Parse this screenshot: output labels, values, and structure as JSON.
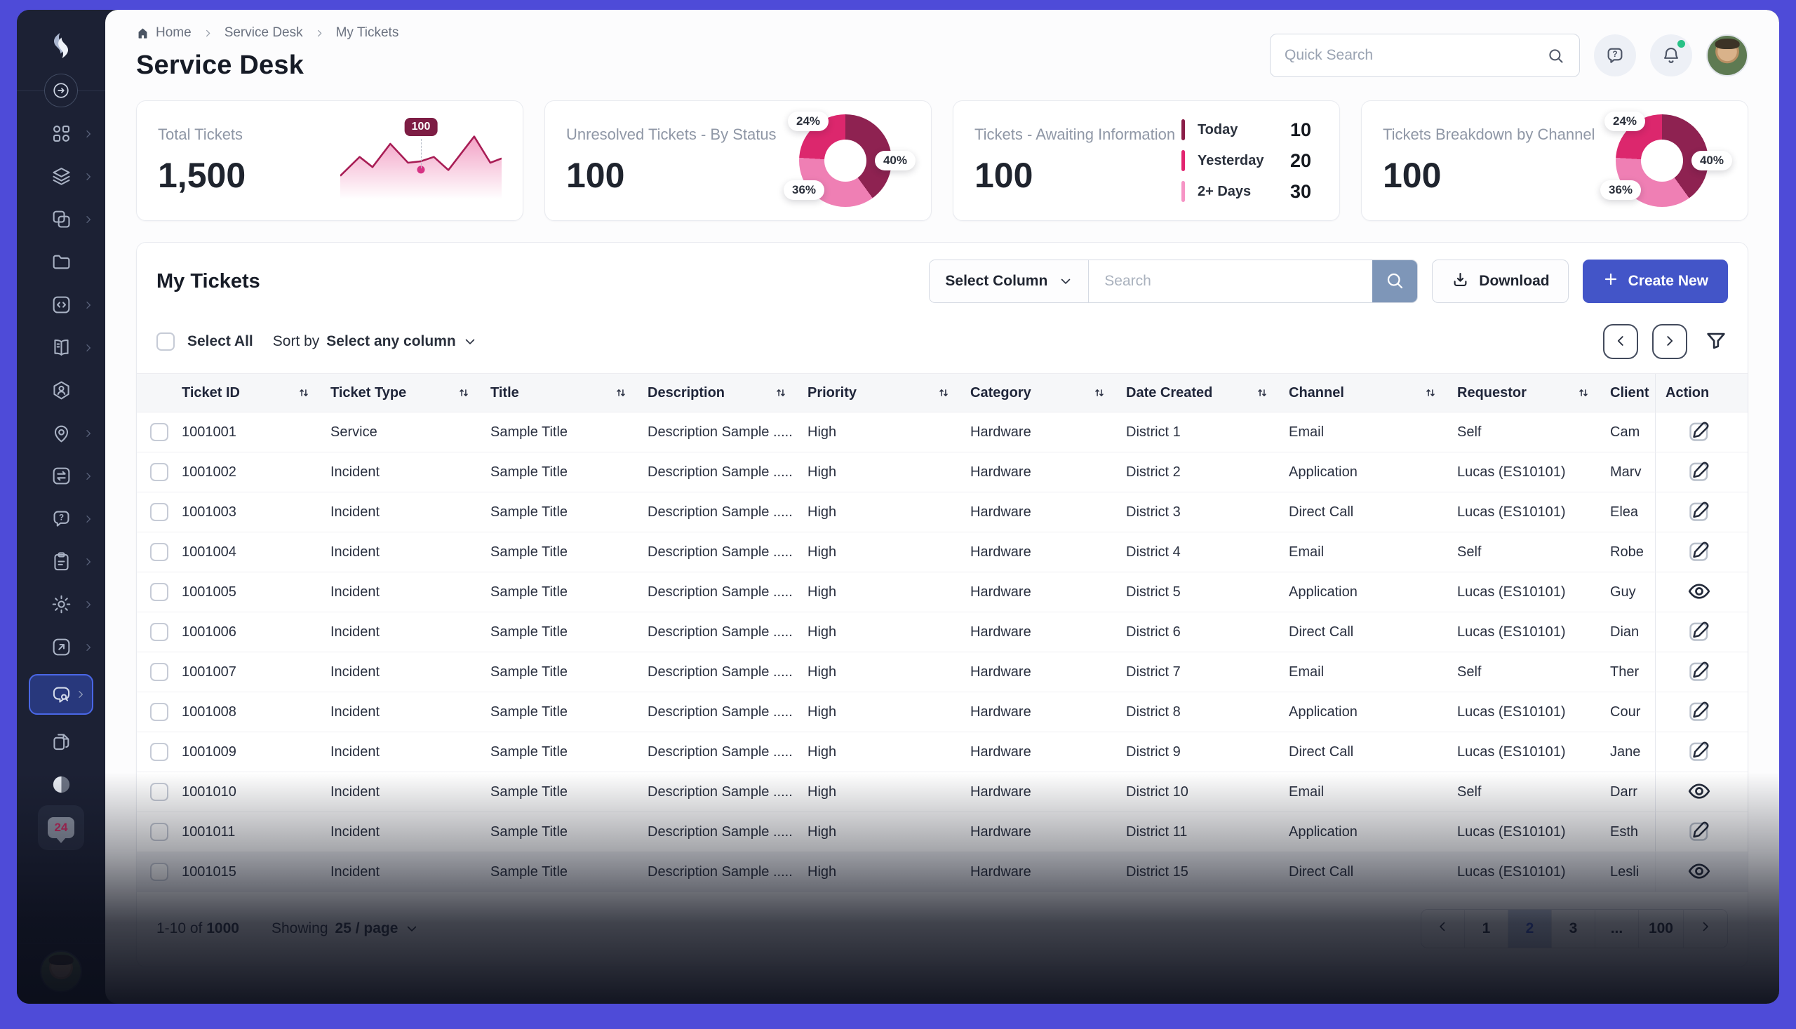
{
  "breadcrumb": {
    "items": [
      "Home",
      "Service Desk",
      "My Tickets"
    ]
  },
  "page_title": "Service Desk",
  "header": {
    "quick_search_placeholder": "Quick Search"
  },
  "sidebar": {
    "items": [
      {
        "icon": "apps-grid",
        "chevron": true
      },
      {
        "icon": "layers",
        "chevron": true
      },
      {
        "icon": "copy",
        "chevron": true
      },
      {
        "icon": "folder",
        "chevron": false
      },
      {
        "icon": "code-square",
        "chevron": true
      },
      {
        "icon": "book",
        "chevron": true
      },
      {
        "icon": "hexagon-user",
        "chevron": false
      },
      {
        "icon": "location-pin",
        "chevron": true
      },
      {
        "icon": "swap",
        "chevron": true
      },
      {
        "icon": "question-bubble",
        "chevron": true
      },
      {
        "icon": "clipboard",
        "chevron": true
      },
      {
        "icon": "gear",
        "chevron": true
      },
      {
        "icon": "external-link",
        "chevron": true
      },
      {
        "icon": "chat-search",
        "chevron": true,
        "active": true
      },
      {
        "icon": "pages",
        "chevron": false
      },
      {
        "icon": "theme-toggle",
        "chevron": false
      },
      {
        "icon": "badge",
        "chevron": false,
        "badge": "24"
      }
    ]
  },
  "cards": [
    {
      "label": "Total Tickets",
      "value": "1,500",
      "chart": {
        "type": "area-sparkline",
        "highlight_value": "100",
        "dot_index": 5,
        "line_color": "#a81d55",
        "fill_top": "rgba(232,84,150,0.55)",
        "fill_bottom": "rgba(232,84,150,0)",
        "points": [
          [
            0,
            68
          ],
          [
            12,
            42
          ],
          [
            20,
            56
          ],
          [
            31,
            24
          ],
          [
            42,
            50
          ],
          [
            50,
            48
          ],
          [
            58,
            42
          ],
          [
            67,
            60
          ],
          [
            83,
            14
          ],
          [
            93,
            50
          ],
          [
            100,
            44
          ]
        ]
      }
    },
    {
      "label": "Unresolved Tickets - By Status",
      "value": "100",
      "chart": {
        "type": "donut",
        "segments": [
          {
            "label": "40%",
            "value": 40,
            "color": "#8e2251"
          },
          {
            "label": "36%",
            "value": 36,
            "color": "#ef7fb4"
          },
          {
            "label": "24%",
            "value": 24,
            "color": "#dc276d"
          }
        ]
      }
    },
    {
      "label": "Tickets - Awaiting Information",
      "value": "100",
      "legend": [
        {
          "label": "Today",
          "value": "10",
          "color": "#8a1d47"
        },
        {
          "label": "Yesterday",
          "value": "20",
          "color": "#e2246f"
        },
        {
          "label": "2+ Days",
          "value": "30",
          "color": "#f694c5"
        }
      ]
    },
    {
      "label": "Tickets Breakdown by Channel",
      "value": "100",
      "chart": {
        "type": "donut",
        "segments": [
          {
            "label": "40%",
            "value": 40,
            "color": "#8e2251"
          },
          {
            "label": "36%",
            "value": 36,
            "color": "#ef7fb4"
          },
          {
            "label": "24%",
            "value": 24,
            "color": "#dc276d"
          }
        ]
      }
    }
  ],
  "panel": {
    "title": "My Tickets",
    "select_column_label": "Select Column",
    "search_placeholder": "Search",
    "download_label": "Download",
    "create_new_label": "Create New",
    "select_all_label": "Select All",
    "sort_by_prefix": "Sort by",
    "sort_by_value": "Select any column"
  },
  "table": {
    "columns": [
      {
        "key": "checkbox",
        "label": "",
        "sortable": false
      },
      {
        "key": "ticket-id",
        "label": "Ticket ID",
        "sortable": true
      },
      {
        "key": "ticket-type",
        "label": "Ticket Type",
        "sortable": true
      },
      {
        "key": "title",
        "label": "Title",
        "sortable": true
      },
      {
        "key": "description",
        "label": "Description",
        "sortable": true
      },
      {
        "key": "priority",
        "label": "Priority",
        "sortable": true
      },
      {
        "key": "category",
        "label": "Category",
        "sortable": true
      },
      {
        "key": "date-created",
        "label": "Date Created",
        "sortable": true
      },
      {
        "key": "channel",
        "label": "Channel",
        "sortable": true
      },
      {
        "key": "requestor",
        "label": "Requestor",
        "sortable": true
      },
      {
        "key": "client",
        "label": "Client",
        "sortable": false
      },
      {
        "key": "action",
        "label": "Action",
        "sortable": false
      }
    ],
    "rows": [
      {
        "id": "1001001",
        "type": "Service",
        "title": "Sample Title",
        "description": "Description Sample .....",
        "priority": "High",
        "category": "Hardware",
        "date_created": "District 1",
        "channel": "Email",
        "requestor": "Self",
        "client": "Cam",
        "action": "edit"
      },
      {
        "id": "1001002",
        "type": "Incident",
        "title": "Sample Title",
        "description": "Description Sample .....",
        "priority": "High",
        "category": "Hardware",
        "date_created": "District 2",
        "channel": "Application",
        "requestor": "Lucas (ES10101)",
        "client": "Marv",
        "action": "edit"
      },
      {
        "id": "1001003",
        "type": "Incident",
        "title": "Sample Title",
        "description": "Description Sample .....",
        "priority": "High",
        "category": "Hardware",
        "date_created": "District 3",
        "channel": "Direct Call",
        "requestor": "Lucas (ES10101)",
        "client": "Elea",
        "action": "edit"
      },
      {
        "id": "1001004",
        "type": "Incident",
        "title": "Sample Title",
        "description": "Description Sample .....",
        "priority": "High",
        "category": "Hardware",
        "date_created": "District 4",
        "channel": "Email",
        "requestor": "Self",
        "client": "Robe",
        "action": "edit"
      },
      {
        "id": "1001005",
        "type": "Incident",
        "title": "Sample Title",
        "description": "Description Sample .....",
        "priority": "High",
        "category": "Hardware",
        "date_created": "District 5",
        "channel": "Application",
        "requestor": "Lucas (ES10101)",
        "client": "Guy",
        "action": "view"
      },
      {
        "id": "1001006",
        "type": "Incident",
        "title": "Sample Title",
        "description": "Description Sample .....",
        "priority": "High",
        "category": "Hardware",
        "date_created": "District 6",
        "channel": "Direct Call",
        "requestor": "Lucas (ES10101)",
        "client": "Dian",
        "action": "edit"
      },
      {
        "id": "1001007",
        "type": "Incident",
        "title": "Sample Title",
        "description": "Description Sample .....",
        "priority": "High",
        "category": "Hardware",
        "date_created": "District 7",
        "channel": "Email",
        "requestor": "Self",
        "client": "Ther",
        "action": "edit"
      },
      {
        "id": "1001008",
        "type": "Incident",
        "title": "Sample Title",
        "description": "Description Sample .....",
        "priority": "High",
        "category": "Hardware",
        "date_created": "District 8",
        "channel": "Application",
        "requestor": "Lucas (ES10101)",
        "client": "Cour",
        "action": "edit"
      },
      {
        "id": "1001009",
        "type": "Incident",
        "title": "Sample Title",
        "description": "Description Sample .....",
        "priority": "High",
        "category": "Hardware",
        "date_created": "District 9",
        "channel": "Direct Call",
        "requestor": "Lucas (ES10101)",
        "client": "Jane",
        "action": "edit"
      },
      {
        "id": "1001010",
        "type": "Incident",
        "title": "Sample Title",
        "description": "Description Sample .....",
        "priority": "High",
        "category": "Hardware",
        "date_created": "District 10",
        "channel": "Email",
        "requestor": "Self",
        "client": "Darr",
        "action": "view"
      },
      {
        "id": "1001011",
        "type": "Incident",
        "title": "Sample Title",
        "description": "Description Sample .....",
        "priority": "High",
        "category": "Hardware",
        "date_created": "District 11",
        "channel": "Application",
        "requestor": "Lucas (ES10101)",
        "client": "Esth",
        "action": "edit"
      },
      {
        "id": "1001015",
        "type": "Incident",
        "title": "Sample Title",
        "description": "Description Sample .....",
        "priority": "High",
        "category": "Hardware",
        "date_created": "District 15",
        "channel": "Direct Call",
        "requestor": "Lucas (ES10101)",
        "client": "Lesli",
        "action": "view"
      }
    ]
  },
  "pagination": {
    "range_prefix": "1-10 of",
    "range_total": "1000",
    "showing_prefix": "Showing",
    "showing_value": "25 / page",
    "pages": [
      "1",
      "2",
      "3",
      "...",
      "100"
    ],
    "active_page": "2"
  }
}
